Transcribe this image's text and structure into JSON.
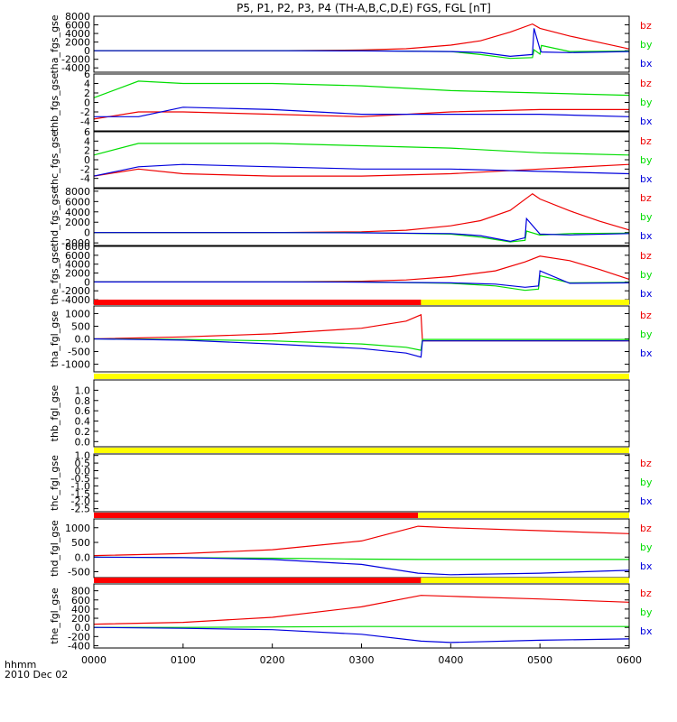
{
  "title": "P5, P1, P2, P3, P4 (TH-A,B,C,D,E) FGS, FGL [nT]",
  "time_label_1": "hhmm",
  "time_label_2": "2010 Dec 02",
  "colors": {
    "bx": "#0000dd",
    "by": "#00dd00",
    "bz": "#ee0000",
    "bar_red": "#ff0000",
    "bar_yellow": "#ffff00",
    "axis": "#000000"
  },
  "chart_data": {
    "type": "line",
    "x_unit": "hhmm",
    "x_ticks": [
      "0000",
      "0100",
      "0200",
      "0300",
      "0400",
      "0500",
      "0600"
    ],
    "xlim": [
      "0000",
      "0600"
    ],
    "panels": [
      {
        "ylabel": "tha_fgs_gse",
        "ylim": [
          -5000,
          8000
        ],
        "y_ticks": [
          8000,
          6000,
          4000,
          2000,
          0,
          -2000,
          -4000
        ],
        "legend": [
          "bz",
          "by",
          "bx"
        ],
        "series": [
          {
            "name": "bz",
            "x": [
              "0000",
              "0100",
              "0200",
              "0300",
              "0330",
              "0400",
              "0420",
              "0440",
              "0455",
              "0500",
              "0520",
              "0540",
              "0600"
            ],
            "y": [
              0,
              0,
              0,
              150,
              450,
              1300,
              2300,
              4300,
              6200,
              5200,
              3400,
              1900,
              400
            ]
          },
          {
            "name": "by",
            "x": [
              "0000",
              "0100",
              "0200",
              "0300",
              "0400",
              "0420",
              "0440",
              "0455",
              "0456",
              "0500",
              "0501",
              "0520",
              "0600"
            ],
            "y": [
              0,
              0,
              0,
              0,
              -200,
              -900,
              -1800,
              -1600,
              200,
              -800,
              1200,
              -200,
              -100
            ]
          },
          {
            "name": "bx",
            "x": [
              "0000",
              "0100",
              "0200",
              "0300",
              "0400",
              "0420",
              "0440",
              "0455",
              "0456",
              "0500",
              "0501",
              "0520",
              "0600"
            ],
            "y": [
              0,
              0,
              0,
              -50,
              -200,
              -400,
              -1300,
              -900,
              5200,
              300,
              -300,
              -450,
              -200
            ]
          }
        ]
      },
      {
        "ylabel": "thb_fgs_gse",
        "ylim": [
          -6,
          6
        ],
        "y_ticks": [
          6,
          4,
          2,
          0,
          -2,
          -4
        ],
        "legend": [
          "bz",
          "by",
          "bx"
        ],
        "series": [
          {
            "name": "bz",
            "x": [
              "0000",
              "0030",
              "0100",
              "0200",
              "0300",
              "0400",
              "0500",
              "0600"
            ],
            "y": [
              -3.5,
              -2,
              -2,
              -2.5,
              -3,
              -2,
              -1.5,
              -1.5
            ]
          },
          {
            "name": "by",
            "x": [
              "0000",
              "0030",
              "0100",
              "0200",
              "0300",
              "0400",
              "0500",
              "0600"
            ],
            "y": [
              1,
              4.5,
              4,
              4,
              3.5,
              2.5,
              2,
              1.5
            ]
          },
          {
            "name": "bx",
            "x": [
              "0000",
              "0030",
              "0100",
              "0200",
              "0300",
              "0400",
              "0500",
              "0600"
            ],
            "y": [
              -3,
              -3,
              -1,
              -1.5,
              -2.5,
              -2.5,
              -2.5,
              -3
            ]
          }
        ]
      },
      {
        "ylabel": "thc_fgs_gse",
        "ylim": [
          -6,
          6
        ],
        "y_ticks": [
          6,
          4,
          2,
          0,
          -2,
          -4
        ],
        "legend": [
          "bz",
          "by",
          "bx"
        ],
        "series": [
          {
            "name": "bz",
            "x": [
              "0000",
              "0030",
              "0100",
              "0200",
              "0300",
              "0400",
              "0500",
              "0600"
            ],
            "y": [
              -3.5,
              -2,
              -3,
              -3.5,
              -3.5,
              -3,
              -2,
              -1
            ]
          },
          {
            "name": "by",
            "x": [
              "0000",
              "0030",
              "0100",
              "0200",
              "0300",
              "0400",
              "0500",
              "0600"
            ],
            "y": [
              1,
              3.5,
              3.5,
              3.5,
              3,
              2.5,
              1.5,
              1
            ]
          },
          {
            "name": "bx",
            "x": [
              "0000",
              "0030",
              "0100",
              "0200",
              "0300",
              "0400",
              "0500",
              "0600"
            ],
            "y": [
              -3.5,
              -1.5,
              -1,
              -1.5,
              -2,
              -2,
              -2.5,
              -3
            ]
          }
        ]
      },
      {
        "ylabel": "thd_fgs_gse",
        "ylim": [
          -2500,
          8500
        ],
        "y_ticks": [
          8000,
          6000,
          4000,
          2000,
          0,
          -2000
        ],
        "legend": [
          "bz",
          "by",
          "bx"
        ],
        "series": [
          {
            "name": "bz",
            "x": [
              "0000",
              "0100",
              "0200",
              "0300",
              "0330",
              "0400",
              "0420",
              "0440",
              "0455",
              "0500",
              "0520",
              "0540",
              "0600"
            ],
            "y": [
              0,
              0,
              0,
              150,
              450,
              1300,
              2300,
              4300,
              7500,
              6500,
              4200,
              2200,
              500
            ]
          },
          {
            "name": "by",
            "x": [
              "0000",
              "0100",
              "0200",
              "0300",
              "0400",
              "0420",
              "0440",
              "0450",
              "0451",
              "0500",
              "0520",
              "0600"
            ],
            "y": [
              0,
              0,
              0,
              0,
              -300,
              -900,
              -1800,
              -1500,
              300,
              -500,
              -200,
              -100
            ]
          },
          {
            "name": "bx",
            "x": [
              "0000",
              "0100",
              "0200",
              "0300",
              "0400",
              "0420",
              "0440",
              "0450",
              "0451",
              "0500",
              "0520",
              "0600"
            ],
            "y": [
              0,
              0,
              0,
              -50,
              -200,
              -600,
              -1700,
              -1000,
              2700,
              -300,
              -450,
              -200
            ]
          }
        ]
      },
      {
        "ylabel": "the_fgs_gse",
        "ylim": [
          -5000,
          8000
        ],
        "y_ticks": [
          8000,
          6000,
          4000,
          2000,
          0,
          -2000,
          -4000
        ],
        "legend": [
          "bz",
          "by",
          "bx"
        ],
        "series": [
          {
            "name": "bz",
            "x": [
              "0000",
              "0100",
              "0200",
              "0300",
              "0330",
              "0400",
              "0430",
              "0450",
              "0500",
              "0520",
              "0540",
              "0600"
            ],
            "y": [
              0,
              0,
              0,
              150,
              450,
              1200,
              2500,
              4500,
              5800,
              4800,
              2800,
              600
            ]
          },
          {
            "name": "by",
            "x": [
              "0000",
              "0100",
              "0200",
              "0300",
              "0400",
              "0430",
              "0450",
              "0459",
              "0500",
              "0520",
              "0600"
            ],
            "y": [
              0,
              0,
              0,
              0,
              -300,
              -900,
              -1900,
              -1600,
              1400,
              -200,
              -100
            ]
          },
          {
            "name": "bx",
            "x": [
              "0000",
              "0100",
              "0200",
              "0300",
              "0400",
              "0430",
              "0450",
              "0459",
              "0500",
              "0520",
              "0600"
            ],
            "y": [
              0,
              0,
              0,
              -50,
              -200,
              -500,
              -1200,
              -900,
              2500,
              -300,
              -200
            ]
          }
        ]
      },
      {
        "ylabel": "tha_fgl_gse",
        "ylim": [
          -1300,
          1300
        ],
        "y_ticks": [
          1000,
          500,
          0,
          -500,
          -1000
        ],
        "legend": [
          "bz",
          "by",
          "bx"
        ],
        "bar": [
          {
            "from": "0000",
            "to": "0340",
            "state": "red"
          },
          {
            "from": "0340",
            "to": "0600",
            "state": "yellow"
          }
        ],
        "series": [
          {
            "name": "bz",
            "x": [
              "0000",
              "0100",
              "0200",
              "0300",
              "0330",
              "0340",
              "0341",
              "0600"
            ],
            "y": [
              0,
              80,
              200,
              420,
              700,
              950,
              -80,
              -80
            ]
          },
          {
            "name": "by",
            "x": [
              "0000",
              "0100",
              "0200",
              "0300",
              "0330",
              "0340",
              "0341",
              "0600"
            ],
            "y": [
              0,
              -20,
              -80,
              -200,
              -330,
              -450,
              -20,
              -20
            ]
          },
          {
            "name": "bx",
            "x": [
              "0000",
              "0100",
              "0200",
              "0300",
              "0330",
              "0340",
              "0341",
              "0600"
            ],
            "y": [
              0,
              -50,
              -200,
              -380,
              -560,
              -720,
              -80,
              -80
            ]
          }
        ]
      },
      {
        "ylabel": "thb_fgl_gse",
        "ylim": [
          -0.1,
          1.2
        ],
        "y_ticks": [
          1.0,
          0.8,
          0.6,
          0.4,
          0.2,
          0.0
        ],
        "legend": [],
        "bar": [
          {
            "from": "0000",
            "to": "0600",
            "state": "yellow"
          }
        ],
        "series": []
      },
      {
        "ylabel": "thc_fgl_gse",
        "ylim": [
          -2.7,
          1.1
        ],
        "y_ticks": [
          1.0,
          0.5,
          0.0,
          -0.5,
          -1.0,
          -1.5,
          -2.0,
          -2.5
        ],
        "legend": [
          "bz",
          "by",
          "bx"
        ],
        "bar": [
          {
            "from": "0000",
            "to": "0600",
            "state": "yellow"
          }
        ],
        "series": []
      },
      {
        "ylabel": "thd_fgl_gse",
        "ylim": [
          -700,
          1300
        ],
        "y_ticks": [
          1000,
          500,
          0,
          -500
        ],
        "legend": [
          "bz",
          "by",
          "bx"
        ],
        "bar": [
          {
            "from": "0000",
            "to": "0338",
            "state": "red"
          },
          {
            "from": "0338",
            "to": "0600",
            "state": "yellow"
          }
        ],
        "series": [
          {
            "name": "bz",
            "x": [
              "0000",
              "0100",
              "0200",
              "0300",
              "0338",
              "0400",
              "0500",
              "0600"
            ],
            "y": [
              50,
              120,
              250,
              550,
              1050,
              1000,
              900,
              800
            ]
          },
          {
            "name": "by",
            "x": [
              "0000",
              "0100",
              "0200",
              "0300",
              "0338",
              "0400",
              "0500",
              "0600"
            ],
            "y": [
              0,
              -20,
              -40,
              -70,
              -80,
              -80,
              -80,
              -80
            ]
          },
          {
            "name": "bx",
            "x": [
              "0000",
              "0100",
              "0200",
              "0300",
              "0338",
              "0400",
              "0500",
              "0600"
            ],
            "y": [
              0,
              -20,
              -80,
              -250,
              -550,
              -600,
              -550,
              -450
            ]
          }
        ]
      },
      {
        "ylabel": "the_fgl_gse",
        "ylim": [
          -450,
          950
        ],
        "y_ticks": [
          800,
          600,
          400,
          200,
          0,
          -200,
          -400
        ],
        "legend": [
          "bz",
          "by",
          "bx"
        ],
        "bar": [
          {
            "from": "0000",
            "to": "0340",
            "state": "red"
          },
          {
            "from": "0340",
            "to": "0600",
            "state": "yellow"
          }
        ],
        "series": [
          {
            "name": "bz",
            "x": [
              "0000",
              "0100",
              "0200",
              "0300",
              "0340",
              "0400",
              "0500",
              "0600"
            ],
            "y": [
              70,
              110,
              220,
              450,
              700,
              680,
              620,
              550
            ]
          },
          {
            "name": "by",
            "x": [
              "0000",
              "0100",
              "0200",
              "0300",
              "0340",
              "0400",
              "0500",
              "0600"
            ],
            "y": [
              0,
              0,
              10,
              20,
              20,
              20,
              20,
              20
            ]
          },
          {
            "name": "bx",
            "x": [
              "0000",
              "0100",
              "0200",
              "0300",
              "0340",
              "0400",
              "0500",
              "0600"
            ],
            "y": [
              0,
              -20,
              -50,
              -150,
              -300,
              -330,
              -280,
              -250
            ]
          }
        ]
      }
    ]
  }
}
